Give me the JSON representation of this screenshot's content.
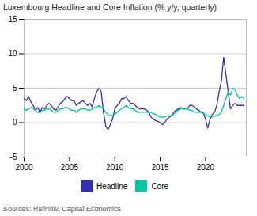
{
  "chart_data": {
    "type": "line",
    "title": "Luxembourg Headline and Core Inflation (% y/y, quarterly)",
    "caption": "Sources: Refinitiv, Capital Economics",
    "x": [
      2000.0,
      2000.25,
      2000.5,
      2000.75,
      2001.0,
      2001.25,
      2001.5,
      2001.75,
      2002.0,
      2002.25,
      2002.5,
      2002.75,
      2003.0,
      2003.25,
      2003.5,
      2003.75,
      2004.0,
      2004.25,
      2004.5,
      2004.75,
      2005.0,
      2005.25,
      2005.5,
      2005.75,
      2006.0,
      2006.25,
      2006.5,
      2006.75,
      2007.0,
      2007.25,
      2007.5,
      2007.75,
      2008.0,
      2008.25,
      2008.5,
      2008.75,
      2009.0,
      2009.25,
      2009.5,
      2009.75,
      2010.0,
      2010.25,
      2010.5,
      2010.75,
      2011.0,
      2011.25,
      2011.5,
      2011.75,
      2012.0,
      2012.25,
      2012.5,
      2012.75,
      2013.0,
      2013.25,
      2013.5,
      2013.75,
      2014.0,
      2014.25,
      2014.5,
      2014.75,
      2015.0,
      2015.25,
      2015.5,
      2015.75,
      2016.0,
      2016.25,
      2016.5,
      2016.75,
      2017.0,
      2017.25,
      2017.5,
      2017.75,
      2018.0,
      2018.25,
      2018.5,
      2018.75,
      2019.0,
      2019.25,
      2019.5,
      2019.75,
      2020.0,
      2020.25,
      2020.5,
      2020.75,
      2021.0,
      2021.25,
      2021.5,
      2021.75,
      2022.0,
      2022.25,
      2022.5,
      2022.75,
      2023.0,
      2023.25,
      2023.5,
      2023.75,
      2024.0,
      2024.25
    ],
    "series": [
      {
        "name": "Headline",
        "color": "#3030b0",
        "values": [
          3.5,
          3.2,
          3.8,
          3.0,
          2.5,
          1.8,
          2.2,
          1.5,
          2.2,
          2.0,
          2.5,
          2.8,
          2.5,
          2.0,
          1.8,
          2.3,
          2.8,
          3.0,
          3.5,
          3.8,
          3.5,
          3.2,
          3.2,
          2.5,
          2.8,
          3.0,
          3.2,
          2.8,
          2.5,
          2.8,
          2.3,
          3.5,
          4.5,
          5.0,
          4.5,
          1.5,
          -0.5,
          -1.0,
          -0.3,
          0.5,
          2.0,
          2.5,
          2.8,
          3.5,
          3.5,
          3.8,
          3.2,
          2.8,
          2.8,
          2.5,
          2.2,
          2.0,
          2.0,
          2.0,
          1.8,
          1.5,
          0.8,
          0.5,
          0.3,
          0.2,
          0.0,
          -0.3,
          0.0,
          0.5,
          0.8,
          1.0,
          1.5,
          1.8,
          2.0,
          2.2,
          2.0,
          2.0,
          2.0,
          2.5,
          2.5,
          2.3,
          2.0,
          1.8,
          1.5,
          1.5,
          0.5,
          -0.8,
          0.5,
          1.2,
          1.5,
          2.5,
          4.5,
          6.0,
          9.5,
          7.0,
          4.5,
          2.0,
          2.5,
          2.8,
          2.5,
          2.5,
          2.5,
          2.5
        ]
      },
      {
        "name": "Core",
        "color": "#00c8a0",
        "values": [
          2.0,
          1.8,
          2.0,
          2.2,
          2.0,
          1.8,
          1.5,
          1.5,
          1.8,
          1.8,
          2.0,
          2.0,
          1.8,
          1.5,
          1.5,
          1.8,
          2.0,
          2.0,
          2.2,
          2.2,
          2.0,
          1.8,
          1.8,
          1.5,
          1.8,
          2.0,
          2.0,
          2.0,
          1.8,
          1.8,
          2.0,
          2.2,
          2.2,
          2.5,
          2.2,
          2.0,
          1.5,
          1.2,
          1.0,
          1.0,
          1.2,
          1.5,
          1.8,
          2.0,
          2.2,
          2.5,
          2.2,
          2.0,
          2.0,
          1.8,
          1.5,
          1.5,
          1.5,
          1.5,
          1.5,
          1.5,
          1.5,
          1.3,
          1.2,
          1.0,
          0.8,
          0.8,
          0.8,
          1.0,
          1.0,
          1.0,
          1.2,
          1.5,
          1.8,
          2.0,
          2.0,
          2.0,
          2.0,
          1.8,
          1.8,
          1.5,
          1.5,
          1.5,
          1.5,
          1.3,
          1.2,
          1.0,
          0.8,
          0.8,
          1.0,
          1.0,
          1.2,
          1.5,
          2.5,
          3.5,
          4.5,
          4.0,
          5.0,
          4.8,
          4.0,
          3.5,
          3.8,
          3.5
        ]
      }
    ],
    "xlim": [
      2000,
      2024.5
    ],
    "ylim": [
      -5,
      15
    ],
    "xticks": [
      2000,
      2005,
      2010,
      2015,
      2020
    ],
    "yticks": [
      -5,
      0,
      5,
      10,
      15
    ],
    "grid": true,
    "legend": "bottom"
  }
}
